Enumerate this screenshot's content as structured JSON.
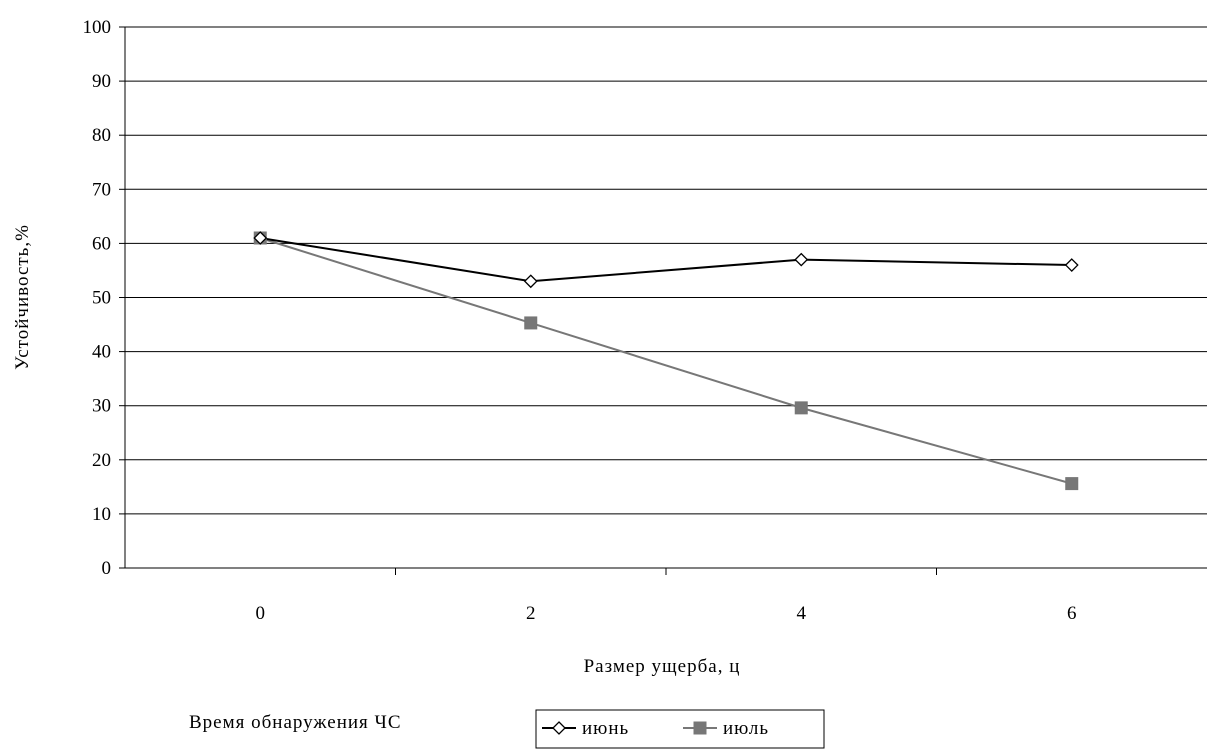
{
  "chart_data": {
    "type": "line",
    "title": "",
    "xlabel": "Размер ущерба, ц",
    "ylabel": "Устойчивость,%",
    "categories": [
      "0",
      "2",
      "4",
      "6"
    ],
    "ylim": [
      0,
      100
    ],
    "yticks": [
      "0",
      "10",
      "20",
      "30",
      "40",
      "50",
      "60",
      "70",
      "80",
      "90",
      "100"
    ],
    "grid": "horizontal",
    "legend_title": "Время обнаружения ЧС",
    "legend_position": "bottom",
    "series": [
      {
        "name": "июнь",
        "values": [
          61,
          53,
          57,
          56
        ],
        "color": "#000000",
        "marker": "diamond-open"
      },
      {
        "name": "июль",
        "values": [
          61,
          45.3,
          29.6,
          15.6
        ],
        "color": "#777777",
        "marker": "square-filled"
      }
    ]
  }
}
